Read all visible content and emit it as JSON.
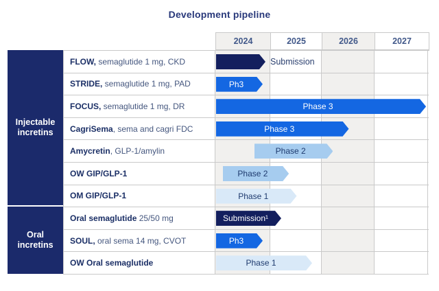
{
  "title": "Development pipeline",
  "years": [
    "2024",
    "2025",
    "2026",
    "2027"
  ],
  "groups": [
    {
      "label": "Injectable incretins",
      "row_count": 7
    },
    {
      "label": "Oral incretins",
      "row_count": 3
    }
  ],
  "rows": [
    {
      "label_bold": "FLOW,",
      "label_rest": " semaglutide 1 mg, CKD",
      "phase": {
        "text": "",
        "outside_text": "Submission",
        "style": "submission",
        "start": 2024.0,
        "end": 2024.9
      }
    },
    {
      "label_bold": "STRIDE,",
      "label_rest": " semaglutide 1 mg, PAD",
      "phase": {
        "text": "Ph3",
        "style": "phase3",
        "start": 2024.0,
        "end": 2024.85
      }
    },
    {
      "label_bold": "FOCUS,",
      "label_rest": " semaglutide 1 mg, DR",
      "phase": {
        "text": "Phase 3",
        "style": "phase3",
        "start": 2024.0,
        "end": 2027.95
      }
    },
    {
      "label_bold": "CagriSema",
      "label_rest": ", sema and cagri FDC",
      "phase": {
        "text": "Phase 3",
        "style": "phase3",
        "start": 2024.0,
        "end": 2026.5
      }
    },
    {
      "label_bold": "Amycretin",
      "label_rest": ", GLP-1/amylin",
      "phase": {
        "text": "Phase 2",
        "style": "phase2",
        "start": 2024.7,
        "end": 2026.2
      }
    },
    {
      "label_bold": "OW GIP/GLP-1",
      "label_rest": "",
      "phase": {
        "text": "Phase 2",
        "style": "phase2",
        "start": 2024.12,
        "end": 2025.35
      }
    },
    {
      "label_bold": "OM GIP/GLP-1",
      "label_rest": "",
      "phase": {
        "text": "Phase 1",
        "style": "phase1",
        "start": 2024.0,
        "end": 2025.5
      }
    },
    {
      "label_bold": "Oral semaglutide",
      "label_rest": " 25/50 mg",
      "phase": {
        "text": "Submission¹",
        "style": "submission",
        "start": 2024.0,
        "end": 2025.2
      }
    },
    {
      "label_bold": "SOUL,",
      "label_rest": " oral sema 14 mg, CVOT",
      "phase": {
        "text": "Ph3",
        "style": "phase3",
        "start": 2024.0,
        "end": 2024.85
      }
    },
    {
      "label_bold": "OW Oral semaglutide",
      "label_rest": "",
      "phase": {
        "text": "Phase 1",
        "style": "phase1",
        "start": 2024.0,
        "end": 2025.8
      }
    }
  ],
  "colors": {
    "group_bg": "#1b2a6b",
    "submission_bar": "#131f5e",
    "phase3_bar": "#1467e2",
    "phase2_bar": "#a6ccef",
    "phase1_bar": "#d9e9f8",
    "title_text": "#28387a",
    "label_bold_text": "#1b2f66",
    "label_text": "#44567e",
    "grid_border": "#c9c9c9",
    "striped_column_bg": "#f1f0ee"
  },
  "chart_data": {
    "type": "bar",
    "title": "Development pipeline",
    "x_axis": {
      "ticks": [
        "2024",
        "2025",
        "2026",
        "2027"
      ],
      "range": [
        2024,
        2028
      ]
    },
    "legend_position": "none",
    "grid": true,
    "series": [
      {
        "name": "FLOW, semaglutide 1 mg, CKD",
        "group": "Injectable incretins",
        "phase": "Submission",
        "start": 2024.0,
        "end": 2024.9
      },
      {
        "name": "STRIDE, semaglutide 1 mg, PAD",
        "group": "Injectable incretins",
        "phase": "Ph3",
        "start": 2024.0,
        "end": 2024.85
      },
      {
        "name": "FOCUS, semaglutide 1 mg, DR",
        "group": "Injectable incretins",
        "phase": "Phase 3",
        "start": 2024.0,
        "end": 2027.95
      },
      {
        "name": "CagriSema, sema and cagri FDC",
        "group": "Injectable incretins",
        "phase": "Phase 3",
        "start": 2024.0,
        "end": 2026.5
      },
      {
        "name": "Amycretin, GLP-1/amylin",
        "group": "Injectable incretins",
        "phase": "Phase 2",
        "start": 2024.7,
        "end": 2026.2
      },
      {
        "name": "OW GIP/GLP-1",
        "group": "Injectable incretins",
        "phase": "Phase 2",
        "start": 2024.12,
        "end": 2025.35
      },
      {
        "name": "OM GIP/GLP-1",
        "group": "Injectable incretins",
        "phase": "Phase 1",
        "start": 2024.0,
        "end": 2025.5
      },
      {
        "name": "Oral semaglutide 25/50 mg",
        "group": "Oral incretins",
        "phase": "Submission¹",
        "start": 2024.0,
        "end": 2025.2
      },
      {
        "name": "SOUL, oral sema 14 mg, CVOT",
        "group": "Oral incretins",
        "phase": "Ph3",
        "start": 2024.0,
        "end": 2024.85
      },
      {
        "name": "OW Oral semaglutide",
        "group": "Oral incretins",
        "phase": "Phase 1",
        "start": 2024.0,
        "end": 2025.8
      }
    ]
  }
}
